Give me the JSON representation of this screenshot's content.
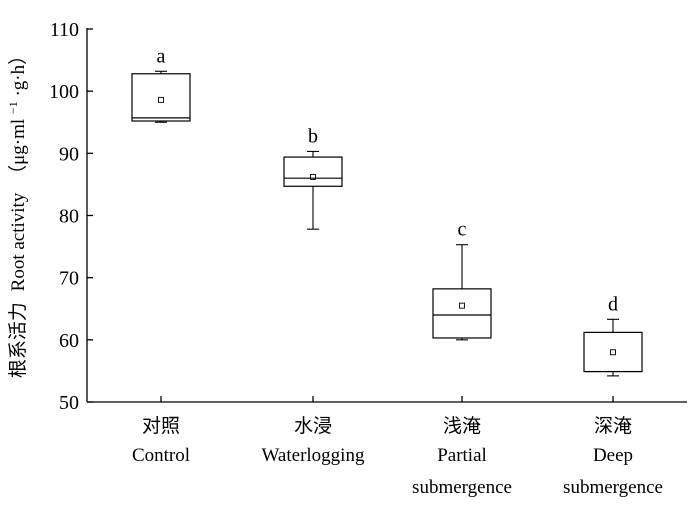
{
  "chart_data": {
    "type": "box",
    "ylabel_cn": "根系活力",
    "ylabel_en": "Root activity",
    "ylabel_unit": "（μg·ml",
    "ylabel_unit_sup": "−1",
    "ylabel_unit_tail": "·g·h）",
    "ylim": [
      50,
      110
    ],
    "yticks": [
      50,
      60,
      70,
      80,
      90,
      100,
      110
    ],
    "grid": false,
    "categories": [
      {
        "cn": "对照",
        "en1": "Control",
        "en2": ""
      },
      {
        "cn": "水浸",
        "en1": "Waterlogging",
        "en2": ""
      },
      {
        "cn": "浅淹",
        "en1": "Partial",
        "en2": "submergence"
      },
      {
        "cn": "深淹",
        "en1": "Deep",
        "en2": "submergence"
      }
    ],
    "boxes": [
      {
        "min": 95.0,
        "q1": 95.2,
        "median": 95.7,
        "q3": 102.8,
        "max": 103.2,
        "mean": 98.6,
        "letter": "a"
      },
      {
        "min": 77.8,
        "q1": 84.7,
        "median": 86.0,
        "q3": 89.4,
        "max": 90.3,
        "mean": 86.2,
        "letter": "b"
      },
      {
        "min": 60.0,
        "q1": 60.3,
        "median": 64.0,
        "q3": 68.2,
        "max": 75.3,
        "mean": 65.5,
        "letter": "c"
      },
      {
        "min": 54.2,
        "q1": 54.9,
        "median": 54.9,
        "q3": 61.2,
        "max": 63.3,
        "mean": 58.0,
        "letter": "d"
      }
    ]
  }
}
